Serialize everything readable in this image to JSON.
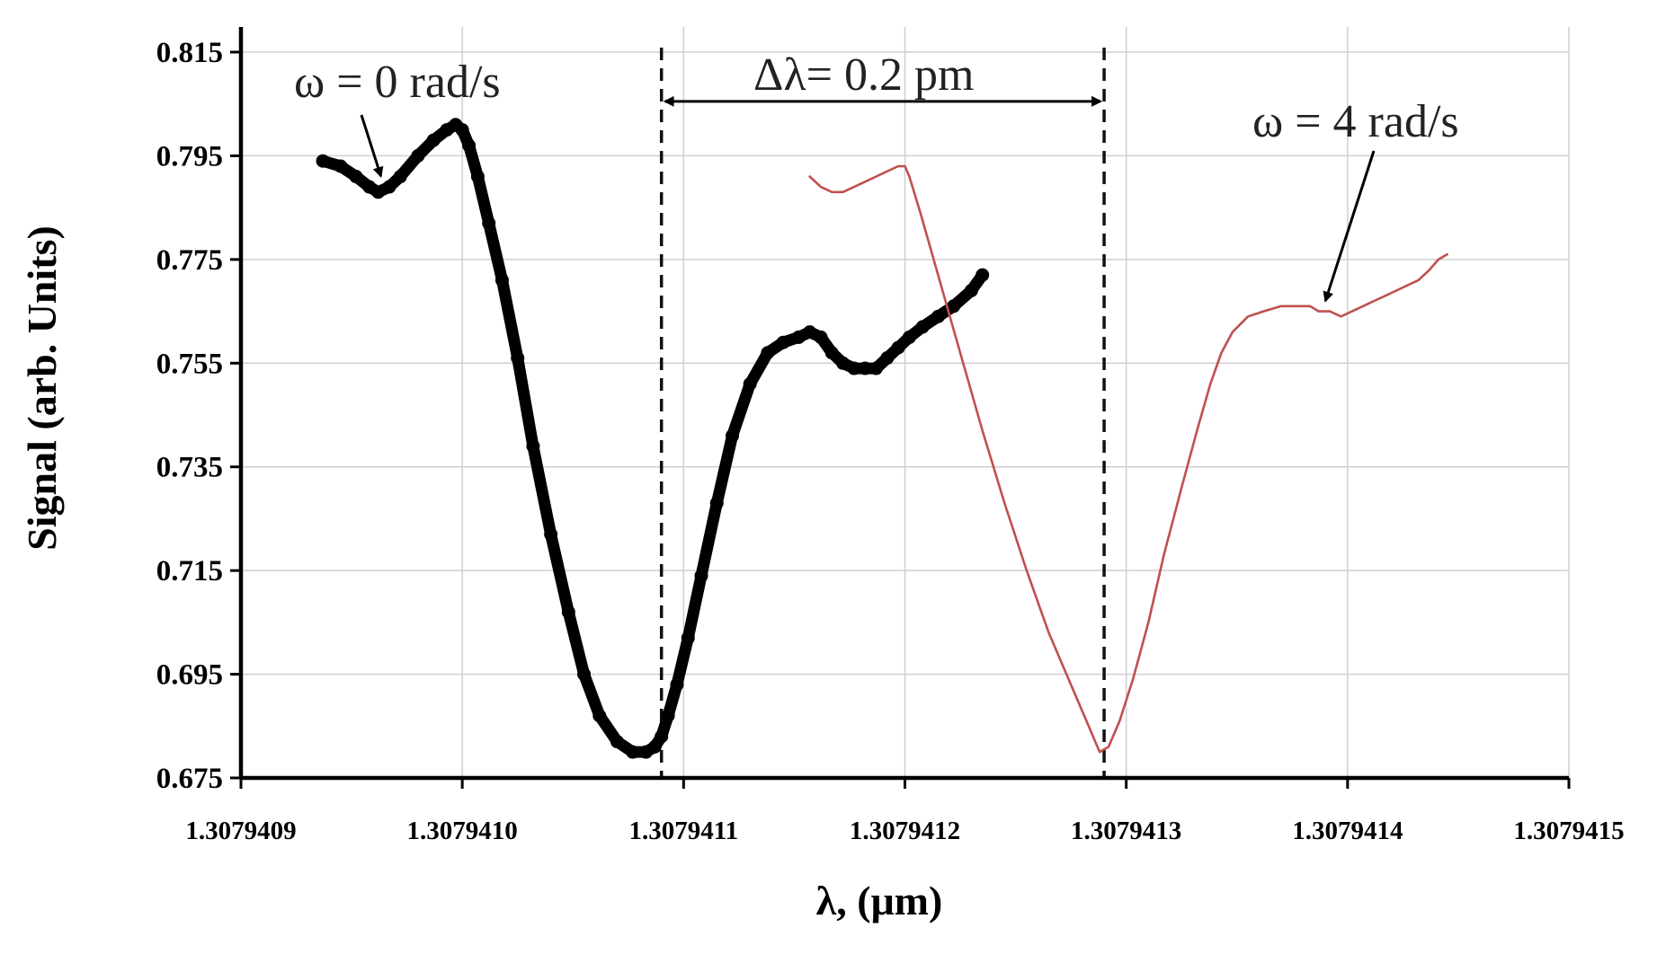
{
  "chart_data": {
    "type": "line",
    "title": "",
    "xlabel": "λ, (μm)",
    "ylabel": "Signal (arb. Units)",
    "x_unit_offset_um": 1.3079409,
    "x_step_um": 1e-07,
    "xlim_steps": [
      0,
      6
    ],
    "ylim": [
      0.675,
      0.815
    ],
    "yticks": [
      0.675,
      0.695,
      0.715,
      0.735,
      0.755,
      0.775,
      0.795,
      0.815
    ],
    "ytick_labels": [
      "0.675",
      "0.695",
      "0.715",
      "0.735",
      "0.755",
      "0.775",
      "0.795",
      "0.815"
    ],
    "xtick_labels": [
      "1.3079409",
      "1.3079410",
      "1.3079411",
      "1.3079412",
      "1.3079413",
      "1.3079414",
      "1.3079415"
    ],
    "grid": true,
    "series": [
      {
        "name": "ω = 0 rad/s",
        "color": "#000000",
        "style": "thick",
        "x_steps": [
          0.37,
          0.45,
          0.52,
          0.58,
          0.62,
          0.67,
          0.72,
          0.8,
          0.87,
          0.93,
          0.97,
          1.0,
          1.03,
          1.07,
          1.12,
          1.18,
          1.25,
          1.32,
          1.4,
          1.48,
          1.55,
          1.62,
          1.7,
          1.77,
          1.83,
          1.87,
          1.9,
          1.93,
          1.97,
          2.02,
          2.08,
          2.15,
          2.22,
          2.3,
          2.38,
          2.45,
          2.52,
          2.57,
          2.62,
          2.67,
          2.72,
          2.77,
          2.82,
          2.87,
          2.92,
          2.97,
          3.02,
          3.08,
          3.15,
          3.22,
          3.3,
          3.35
        ],
        "y_values": [
          0.794,
          0.793,
          0.791,
          0.789,
          0.788,
          0.789,
          0.791,
          0.795,
          0.798,
          0.8,
          0.801,
          0.8,
          0.797,
          0.791,
          0.782,
          0.771,
          0.756,
          0.739,
          0.722,
          0.707,
          0.695,
          0.687,
          0.682,
          0.68,
          0.68,
          0.681,
          0.683,
          0.687,
          0.693,
          0.702,
          0.714,
          0.728,
          0.741,
          0.751,
          0.757,
          0.759,
          0.76,
          0.761,
          0.76,
          0.757,
          0.755,
          0.754,
          0.754,
          0.754,
          0.756,
          0.758,
          0.76,
          0.762,
          0.764,
          0.766,
          0.769,
          0.772
        ]
      },
      {
        "name": "ω = 4 rad/s",
        "color": "#c0504d",
        "style": "thin",
        "x_steps": [
          2.57,
          2.62,
          2.67,
          2.72,
          2.77,
          2.82,
          2.87,
          2.92,
          2.97,
          3.0,
          3.02,
          3.07,
          3.15,
          3.25,
          3.35,
          3.45,
          3.55,
          3.65,
          3.75,
          3.82,
          3.86,
          3.88,
          3.92,
          3.97,
          4.03,
          4.1,
          4.17,
          4.25,
          4.32,
          4.38,
          4.43,
          4.48,
          4.55,
          4.62,
          4.7,
          4.77,
          4.83,
          4.87,
          4.92,
          4.97,
          5.02,
          5.07,
          5.12,
          5.17,
          5.22,
          5.27,
          5.32,
          5.37,
          5.41,
          5.45
        ],
        "y_values": [
          0.791,
          0.789,
          0.788,
          0.788,
          0.789,
          0.79,
          0.791,
          0.792,
          0.793,
          0.793,
          0.791,
          0.784,
          0.772,
          0.757,
          0.742,
          0.728,
          0.715,
          0.703,
          0.693,
          0.686,
          0.682,
          0.68,
          0.681,
          0.686,
          0.694,
          0.705,
          0.718,
          0.731,
          0.742,
          0.751,
          0.757,
          0.761,
          0.764,
          0.765,
          0.766,
          0.766,
          0.766,
          0.765,
          0.765,
          0.764,
          0.765,
          0.766,
          0.767,
          0.768,
          0.769,
          0.77,
          0.771,
          0.773,
          0.775,
          0.776
        ]
      }
    ],
    "reference_lines": [
      {
        "x_step": 1.9,
        "style": "dashed"
      },
      {
        "x_step": 3.9,
        "style": "dashed"
      }
    ],
    "annotations": {
      "omega0": {
        "text": "ω = 0 rad/s",
        "points_to": {
          "x_step": 0.62,
          "y": 0.789
        }
      },
      "omega4": {
        "text": "ω = 4 rad/s",
        "points_to": {
          "x_step": 4.9,
          "y": 0.766
        }
      },
      "delta": {
        "text": "Δλ= 0.2 pm",
        "from_x_step": 1.9,
        "to_x_step": 3.9,
        "y": 0.8055
      }
    }
  }
}
